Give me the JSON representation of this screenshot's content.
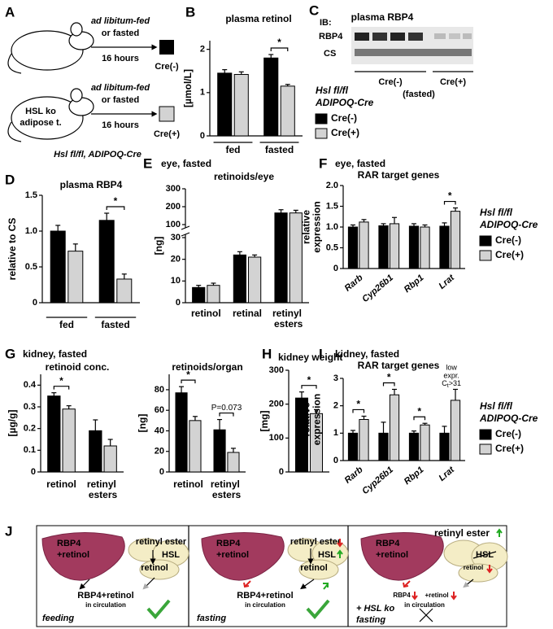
{
  "panel_a": {
    "label": "A",
    "group1": {
      "line1": "ad libitum-fed",
      "line2": "or fasted",
      "line3": "16 hours",
      "box": "Cre(-)"
    },
    "group2": {
      "line1": "ad libitum-fed",
      "line2": "or fasted",
      "line3": "16 hours",
      "box": "Cre(+)",
      "mouse_label": [
        "HSL ko",
        "adipose t."
      ],
      "genotype": "Hsl fl/fl, ADIPOQ-Cre"
    }
  },
  "panel_c": {
    "label": "C",
    "ib": "IB:",
    "title": "plasma RBP4",
    "rows": [
      "RBP4",
      "CS"
    ],
    "groups": [
      "Cre(-)",
      "Cre(+)"
    ],
    "note": "(fasted)"
  },
  "chart_data": [
    {
      "type": "bar",
      "panel": "B",
      "title": "plasma retinol",
      "ylabel": "[µmol/L]",
      "categories": [
        "fed",
        "fasted"
      ],
      "series": [
        {
          "name": "Cre(-)",
          "color": "#000000",
          "values": [
            1.45,
            1.8
          ],
          "errors": [
            0.08,
            0.08
          ]
        },
        {
          "name": "Cre(+)",
          "color": "#d3d3d3",
          "values": [
            1.42,
            1.15
          ],
          "errors": [
            0.06,
            0.04
          ]
        }
      ],
      "ylim": [
        0,
        2.2
      ],
      "yticks": [
        0,
        1,
        2
      ],
      "significance": [
        null,
        "*"
      ],
      "legend_title": [
        "Hsl fl/fl",
        "ADIPOQ-Cre"
      ]
    },
    {
      "type": "bar",
      "panel": "D",
      "title": "plasma RBP4",
      "ylabel": "relative to CS",
      "categories": [
        "fed",
        "fasted"
      ],
      "series": [
        {
          "color": "#000000",
          "values": [
            1.0,
            1.15
          ],
          "errors": [
            0.08,
            0.1
          ]
        },
        {
          "color": "#d3d3d3",
          "values": [
            0.72,
            0.33
          ],
          "errors": [
            0.1,
            0.07
          ]
        }
      ],
      "ylim": [
        0,
        1.5
      ],
      "yticks": [
        0,
        0.5,
        {
          "value": 1,
          "label": "1.0"
        },
        1.5
      ],
      "significance": [
        null,
        "*"
      ]
    },
    {
      "type": "bar",
      "panel": "E",
      "title": "eye, fasted",
      "subtitle": "retinoids/eye",
      "ylabel": "[ng]",
      "categories": [
        "retinol",
        "retinal",
        "retinyl esters"
      ],
      "series": [
        {
          "color": "#000000",
          "values": [
            7,
            22,
            165
          ],
          "errors": [
            1,
            1.5,
            18
          ]
        },
        {
          "color": "#d3d3d3",
          "values": [
            8,
            21,
            165
          ],
          "errors": [
            1,
            1,
            15
          ]
        }
      ],
      "ylim": [
        0,
        300
      ],
      "axis_break": [
        30,
        100
      ],
      "yticks": [
        0,
        10,
        20,
        30,
        100,
        200,
        300
      ]
    },
    {
      "type": "bar",
      "panel": "F",
      "title": "eye, fasted",
      "subtitle": "RAR target genes",
      "ylabel": [
        "relative",
        "expression"
      ],
      "categories": [
        "Rarb",
        "Cyp26b1",
        "Rbp1",
        "Lrat"
      ],
      "series": [
        {
          "name": "Cre(-)",
          "color": "#000000",
          "values": [
            1.0,
            1.03,
            1.02,
            1.02
          ],
          "errors": [
            0.05,
            0.05,
            0.06,
            0.08
          ]
        },
        {
          "name": "Cre(+)",
          "color": "#d3d3d3",
          "values": [
            1.12,
            1.08,
            1.0,
            1.38
          ],
          "errors": [
            0.06,
            0.15,
            0.05,
            0.08
          ]
        }
      ],
      "ylim": [
        0,
        2
      ],
      "yticks": [
        0,
        0.5,
        {
          "value": 1,
          "label": "1.0"
        },
        1.5,
        {
          "value": 2,
          "label": "2.0"
        }
      ],
      "significance": [
        null,
        null,
        null,
        "*"
      ],
      "legend_title": [
        "Hsl fl/fl",
        "ADIPOQ-Cre"
      ]
    },
    {
      "type": "bar",
      "panel": "G",
      "title": "kidney, fasted",
      "subtitle": "retinoid conc.",
      "ylabel": "[µg/g]",
      "categories": [
        "retinol",
        "retinyl esters"
      ],
      "series": [
        {
          "color": "#000000",
          "values": [
            0.35,
            0.19
          ],
          "errors": [
            0.015,
            0.05
          ]
        },
        {
          "color": "#d3d3d3",
          "values": [
            0.29,
            0.12
          ],
          "errors": [
            0.015,
            0.03
          ]
        }
      ],
      "ylim": [
        0,
        0.45
      ],
      "yticks": [
        0,
        0.1,
        0.2,
        0.3,
        0.4
      ],
      "significance": [
        "*",
        null
      ]
    },
    {
      "type": "bar",
      "subtitle": "retinoids/organ",
      "ylabel": "[ng]",
      "categories": [
        "retinol",
        "retinyl esters"
      ],
      "series": [
        {
          "color": "#000000",
          "values": [
            77,
            41
          ],
          "errors": [
            6,
            10
          ]
        },
        {
          "color": "#d3d3d3",
          "values": [
            50,
            19
          ],
          "errors": [
            4,
            4
          ]
        }
      ],
      "ylim": [
        0,
        95
      ],
      "yticks": [
        0,
        20,
        40,
        60,
        80
      ],
      "significance": [
        "*",
        "P=0.073"
      ]
    },
    {
      "type": "bar",
      "panel": "H",
      "title": "kidney weight",
      "ylabel": "[mg]",
      "categories": [
        null
      ],
      "series": [
        {
          "color": "#000000",
          "values": [
            218
          ],
          "errors": [
            18
          ]
        },
        {
          "color": "#d3d3d3",
          "values": [
            172
          ],
          "errors": [
            12
          ]
        }
      ],
      "ylim": [
        0,
        300
      ],
      "yticks": [
        0,
        100,
        200,
        300
      ],
      "significance": [
        "*"
      ]
    },
    {
      "type": "bar",
      "panel": "I",
      "title": "kidney, fasted",
      "subtitle": "RAR target genes",
      "ylabel": [
        "relative",
        "expression"
      ],
      "categories": [
        "Rarb",
        "Cyp26b1",
        "Rbp1",
        "Lrat"
      ],
      "series": [
        {
          "name": "Cre(-)",
          "color": "#000000",
          "values": [
            1.0,
            1.0,
            1.0,
            1.0
          ],
          "errors": [
            0.1,
            0.4,
            0.08,
            0.25
          ]
        },
        {
          "name": "Cre(+)",
          "color": "#d3d3d3",
          "values": [
            1.5,
            2.4,
            1.3,
            2.2
          ],
          "errors": [
            0.12,
            0.2,
            0.06,
            0.4
          ]
        }
      ],
      "ylim": [
        0,
        3
      ],
      "yticks": [
        0,
        1,
        2,
        3
      ],
      "significance": [
        "*",
        "*",
        "*",
        null
      ],
      "note": {
        "lines": [
          "low",
          "expr."
        ],
        "ct": "C",
        "sub": "t",
        "rest": ">31"
      },
      "legend_title": [
        "Hsl fl/fl",
        "ADIPOQ-Cre"
      ]
    }
  ],
  "panel_j": {
    "label": "J",
    "boxes": [
      {
        "liver": [
          "RBP4",
          "+retinol"
        ],
        "ester": "retinyl ester",
        "hsl": "HSL",
        "retinol": "retinol",
        "circulation": "RBP4+retinol",
        "circulation_note": "in circulation",
        "state": "feeding"
      },
      {
        "liver": [
          "RBP4",
          "+retinol"
        ],
        "ester": "retinyl ester",
        "hsl": "HSL",
        "retinol": "retinol",
        "circulation": "RBP4+retinol",
        "circulation_note": "in circulation",
        "state": "fasting"
      },
      {
        "liver": [
          "RBP4",
          "+retinol"
        ],
        "ester": "retinyl ester",
        "hsl": "HSL",
        "retinol": "retinol",
        "circulation": [
          "RBP4",
          "+retinol"
        ],
        "circulation_note": "in circulation",
        "condition": "+ HSL ko",
        "state": "fasting"
      }
    ]
  }
}
